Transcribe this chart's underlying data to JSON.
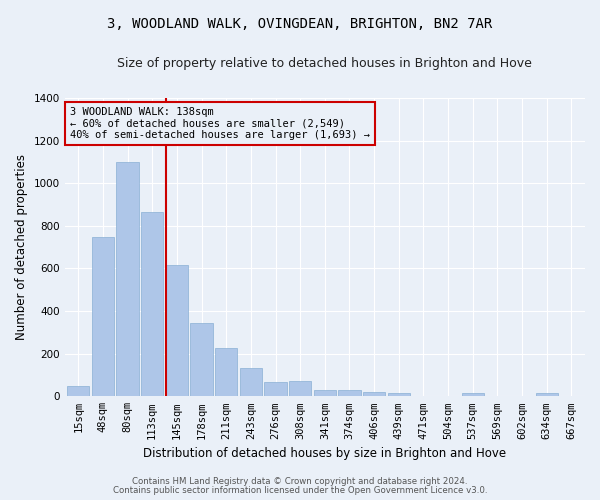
{
  "title": "3, WOODLAND WALK, OVINGDEAN, BRIGHTON, BN2 7AR",
  "subtitle": "Size of property relative to detached houses in Brighton and Hove",
  "xlabel": "Distribution of detached houses by size in Brighton and Hove",
  "ylabel": "Number of detached properties",
  "footer_line1": "Contains HM Land Registry data © Crown copyright and database right 2024.",
  "footer_line2": "Contains public sector information licensed under the Open Government Licence v3.0.",
  "bar_labels": [
    "15sqm",
    "48sqm",
    "80sqm",
    "113sqm",
    "145sqm",
    "178sqm",
    "211sqm",
    "243sqm",
    "276sqm",
    "308sqm",
    "341sqm",
    "374sqm",
    "406sqm",
    "439sqm",
    "471sqm",
    "504sqm",
    "537sqm",
    "569sqm",
    "602sqm",
    "634sqm",
    "667sqm"
  ],
  "bar_values": [
    50,
    750,
    1100,
    865,
    615,
    345,
    225,
    135,
    65,
    70,
    30,
    30,
    22,
    14,
    0,
    0,
    14,
    0,
    0,
    14,
    0
  ],
  "bar_color": "#aec6e8",
  "bar_edgecolor": "#8ab0d4",
  "annotation_line1": "3 WOODLAND WALK: 138sqm",
  "annotation_line2": "← 60% of detached houses are smaller (2,549)",
  "annotation_line3": "40% of semi-detached houses are larger (1,693) →",
  "vline_index": 4,
  "vline_color": "#cc0000",
  "ylim": [
    0,
    1400
  ],
  "yticks": [
    0,
    200,
    400,
    600,
    800,
    1000,
    1200,
    1400
  ],
  "bg_color": "#eaf0f8",
  "grid_color": "#ffffff",
  "title_fontsize": 10,
  "subtitle_fontsize": 9,
  "axis_label_fontsize": 8.5,
  "tick_fontsize": 7.5,
  "annotation_fontsize": 7.5,
  "annotation_box_edgecolor": "#cc0000",
  "bar_width": 0.9
}
